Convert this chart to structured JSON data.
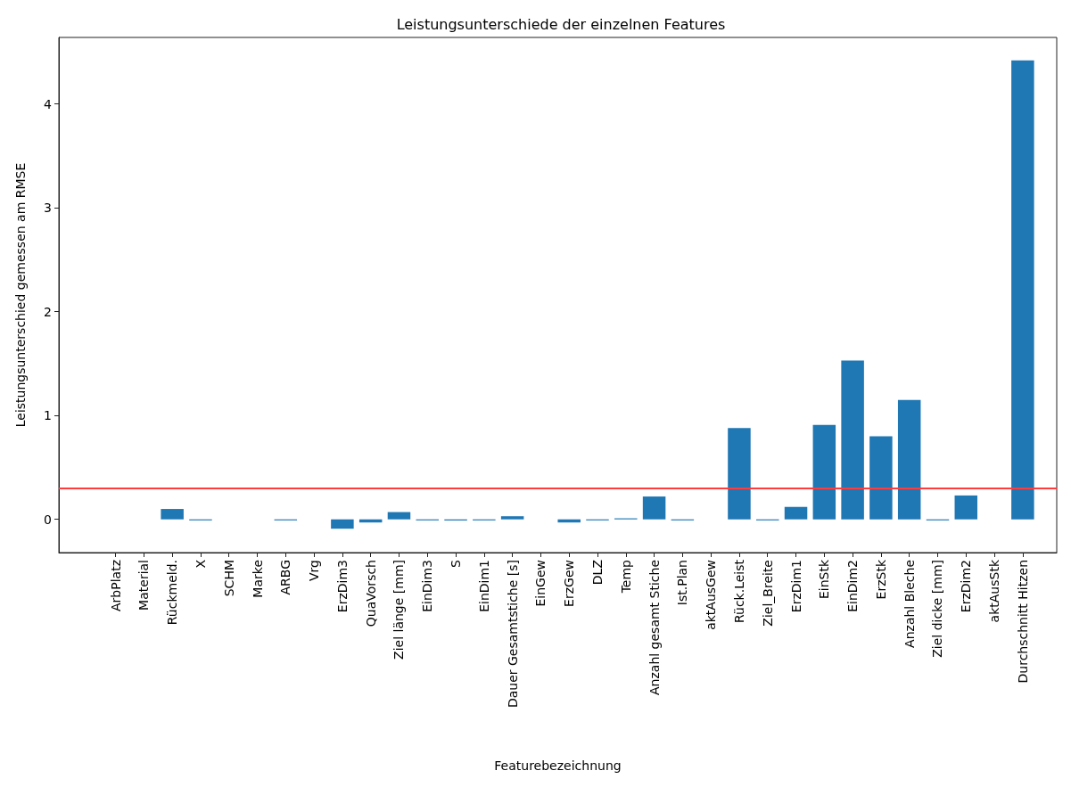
{
  "chart_data": {
    "type": "bar",
    "title": "Leistungsunterschiede der einzelnen Features",
    "xlabel": "Featurebezeichnung",
    "ylabel": "Leistungsunterschied gemessen am RMSE",
    "categories": [
      "ArbPlatz",
      "Material",
      "Rückmeld.",
      "X",
      "SCHM",
      "Marke",
      "ARBG",
      "Vrg",
      "ErzDim3",
      "QuaVorsch",
      "Ziel länge [mm]",
      "EinDim3",
      "S",
      "EinDim1",
      "Dauer Gesamtstiche [s]",
      "EinGew",
      "ErzGew",
      "DLZ",
      "Temp",
      "Anzahl gesamt Stiche",
      "Ist.Plan",
      "aktAusGew",
      "Rück.Leist",
      "Ziel_Breite",
      "ErzDim1",
      "EinStk",
      "EinDim2",
      "ErzStk",
      "Anzahl Bleche",
      "Ziel dicke [mm]",
      "ErzDim2",
      "aktAusStk",
      "Durchschnitt Hitzen"
    ],
    "values": [
      0,
      0,
      0.1,
      -0.01,
      0,
      0,
      -0.01,
      0,
      -0.09,
      -0.03,
      0.07,
      -0.01,
      -0.01,
      -0.01,
      0.03,
      0,
      -0.03,
      -0.01,
      0.01,
      0.22,
      -0.01,
      0,
      0.88,
      -0.01,
      0.12,
      0.91,
      1.53,
      0.8,
      1.15,
      -0.01,
      0.23,
      0,
      4.42
    ],
    "color": "#1f77b4",
    "ylim": [
      -0.32,
      4.64
    ],
    "yticks": [
      0,
      1,
      2,
      3,
      4
    ],
    "grid": false,
    "ref_lines": [
      {
        "axis": "y",
        "value": 0.3,
        "color": "#ff3b3b"
      }
    ]
  }
}
